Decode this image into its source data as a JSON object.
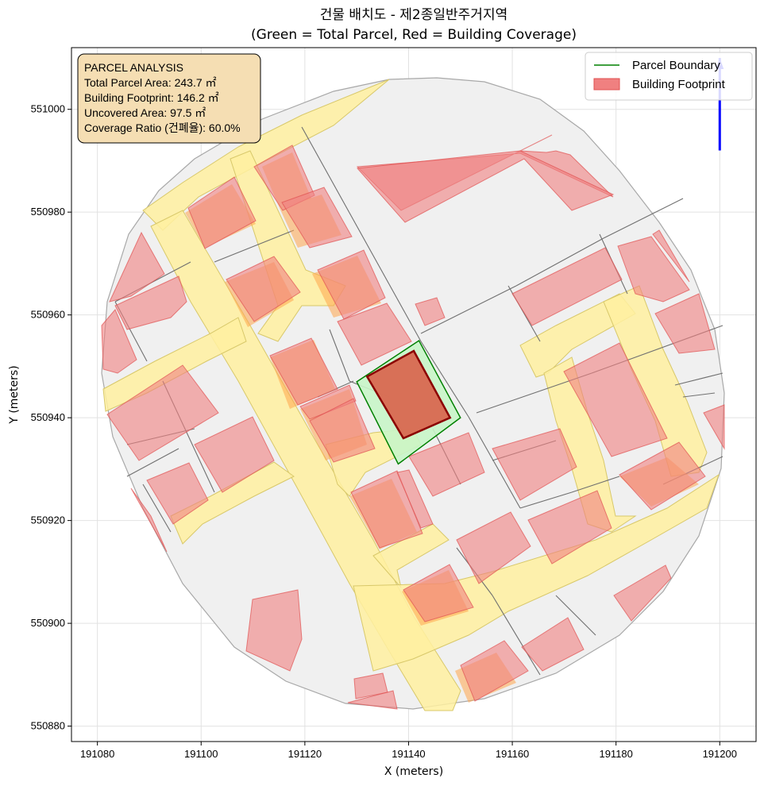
{
  "title": {
    "line1": "건물 배치도 - 제2종일반주거지역",
    "line2": "(Green = Total Parcel, Red = Building Coverage)"
  },
  "axes": {
    "xlabel": "X (meters)",
    "ylabel": "Y (meters)",
    "xlim": [
      191075,
      191207
    ],
    "ylim": [
      550877,
      551012
    ],
    "xticks": [
      191080,
      191100,
      191120,
      191140,
      191160,
      191180,
      191200
    ],
    "yticks": [
      550880,
      550900,
      550920,
      550940,
      550960,
      550980,
      551000
    ],
    "xtick_labels": [
      "191080",
      "191100",
      "191120",
      "191140",
      "191160",
      "191180",
      "191200"
    ],
    "ytick_labels": [
      "550880",
      "550900",
      "550920",
      "550940",
      "550960",
      "550980",
      "551000"
    ],
    "grid": true
  },
  "info_box": {
    "title": "PARCEL ANALYSIS",
    "total_area": "Total Parcel Area: 243.7 ㎡",
    "footprint": "Building Footprint: 146.2 ㎡",
    "uncovered": "Uncovered Area: 97.5 ㎡",
    "coverage": "Coverage Ratio (건폐율): 60.0%"
  },
  "legend": {
    "placement": "top-right",
    "parcel_label": "Parcel Boundary",
    "footprint_label": "Building Footprint"
  },
  "colors": {
    "parcel_edge": "#008000",
    "parcel_fill": "#c8f5c8",
    "building_edge": "#8b0000",
    "building_fill": "#d9624a",
    "context_building": "#f08080",
    "road": "#fff0a0",
    "area_bg": "#f0f0f0",
    "north_arrow": "#0000ff",
    "info_bg": "#f5deb3"
  },
  "map_data": {
    "target_parcel": [
      [
        191130,
        550947
      ],
      [
        191142,
        550955
      ],
      [
        191150,
        550940
      ],
      [
        191138,
        550931
      ]
    ],
    "target_building": [
      [
        191132,
        550948
      ],
      [
        191141,
        550953
      ],
      [
        191148,
        550940
      ],
      [
        191139,
        550936
      ]
    ],
    "north_arrow": {
      "x": 191200,
      "y_start": 550992,
      "y_end": 551010
    }
  }
}
